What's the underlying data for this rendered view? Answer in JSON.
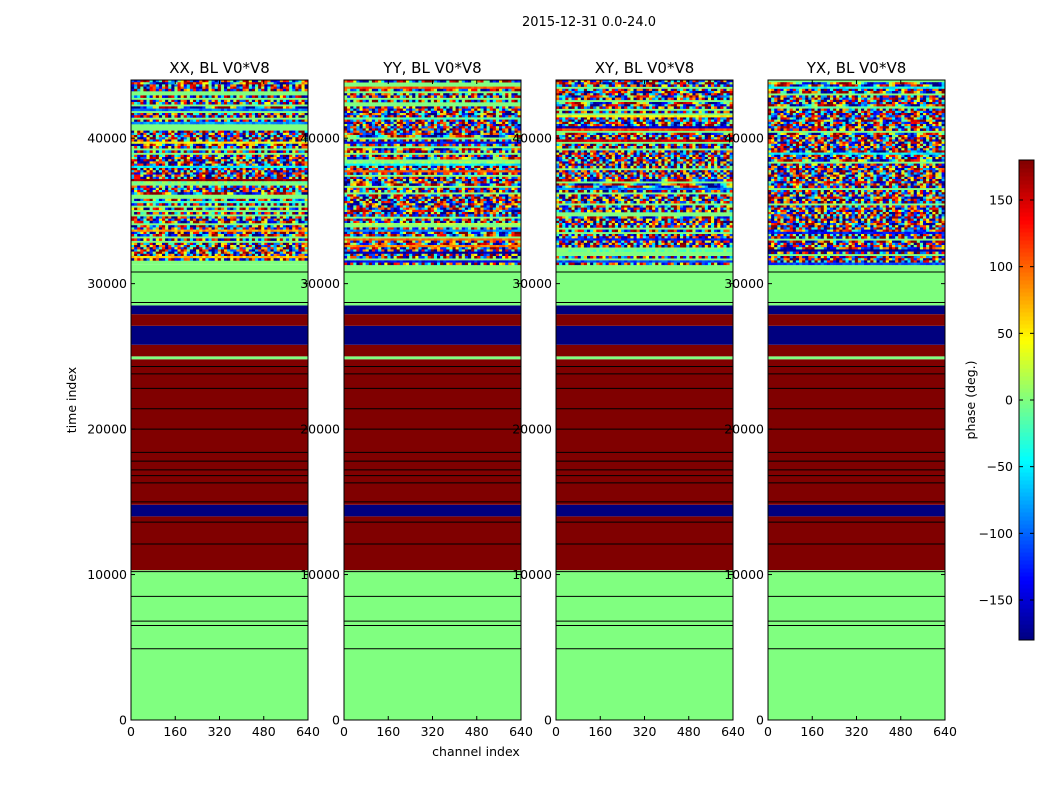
{
  "figure": {
    "suptitle": "2015-12-31 0.0-24.0",
    "xlabel": "channel index",
    "ylabel": "time index",
    "colorbar_label": "phase (deg.)"
  },
  "colors": {
    "green_level": "#80ff80",
    "dark_red": "#800000",
    "navy": "#00007f",
    "line": "#000000"
  },
  "chart_data": {
    "type": "heatmap",
    "panels": [
      {
        "title": "XX, BL V0*V8"
      },
      {
        "title": "YY, BL V0*V8"
      },
      {
        "title": "XY, BL V0*V8"
      },
      {
        "title": "YX, BL V0*V8"
      }
    ],
    "x_range": [
      0,
      640
    ],
    "x_ticks": [
      0,
      160,
      320,
      480,
      640
    ],
    "y_range": [
      0,
      44000
    ],
    "y_ticks": [
      0,
      10000,
      20000,
      30000,
      40000
    ],
    "colorbar": {
      "range": [
        -180,
        180
      ],
      "ticks": [
        150,
        100,
        50,
        0,
        -50,
        -100,
        -150
      ],
      "tick_labels": [
        "150",
        "100",
        "50",
        "0",
        "−50",
        "−100",
        "−150"
      ],
      "colormap": "jet"
    },
    "time_bands": [
      {
        "from": 0,
        "to": 10300,
        "phase_deg": 0,
        "pattern": "uniform"
      },
      {
        "from": 10300,
        "to": 14000,
        "phase_deg": 180,
        "pattern": "uniform"
      },
      {
        "from": 14000,
        "to": 14800,
        "phase_deg": -180,
        "pattern": "uniform"
      },
      {
        "from": 14800,
        "to": 24800,
        "phase_deg": 180,
        "pattern": "uniform"
      },
      {
        "from": 24800,
        "to": 25000,
        "phase_deg": 0,
        "pattern": "uniform"
      },
      {
        "from": 25000,
        "to": 25800,
        "phase_deg": 180,
        "pattern": "uniform"
      },
      {
        "from": 25800,
        "to": 27100,
        "phase_deg": -180,
        "pattern": "uniform"
      },
      {
        "from": 27100,
        "to": 27900,
        "phase_deg": 180,
        "pattern": "uniform"
      },
      {
        "from": 27900,
        "to": 28500,
        "phase_deg": -180,
        "pattern": "uniform"
      },
      {
        "from": 28500,
        "to": 31300,
        "phase_deg": 0,
        "pattern": "uniform"
      },
      {
        "from": 31300,
        "to": 44000,
        "phase_deg": null,
        "pattern": "noisy"
      }
    ],
    "gap_lines": [
      4900,
      6500,
      6800,
      8500,
      10200,
      12100,
      13600,
      15000,
      16300,
      16800,
      17200,
      17800,
      18400,
      20000,
      21400,
      22800,
      23800,
      24300,
      28700,
      30800
    ]
  }
}
